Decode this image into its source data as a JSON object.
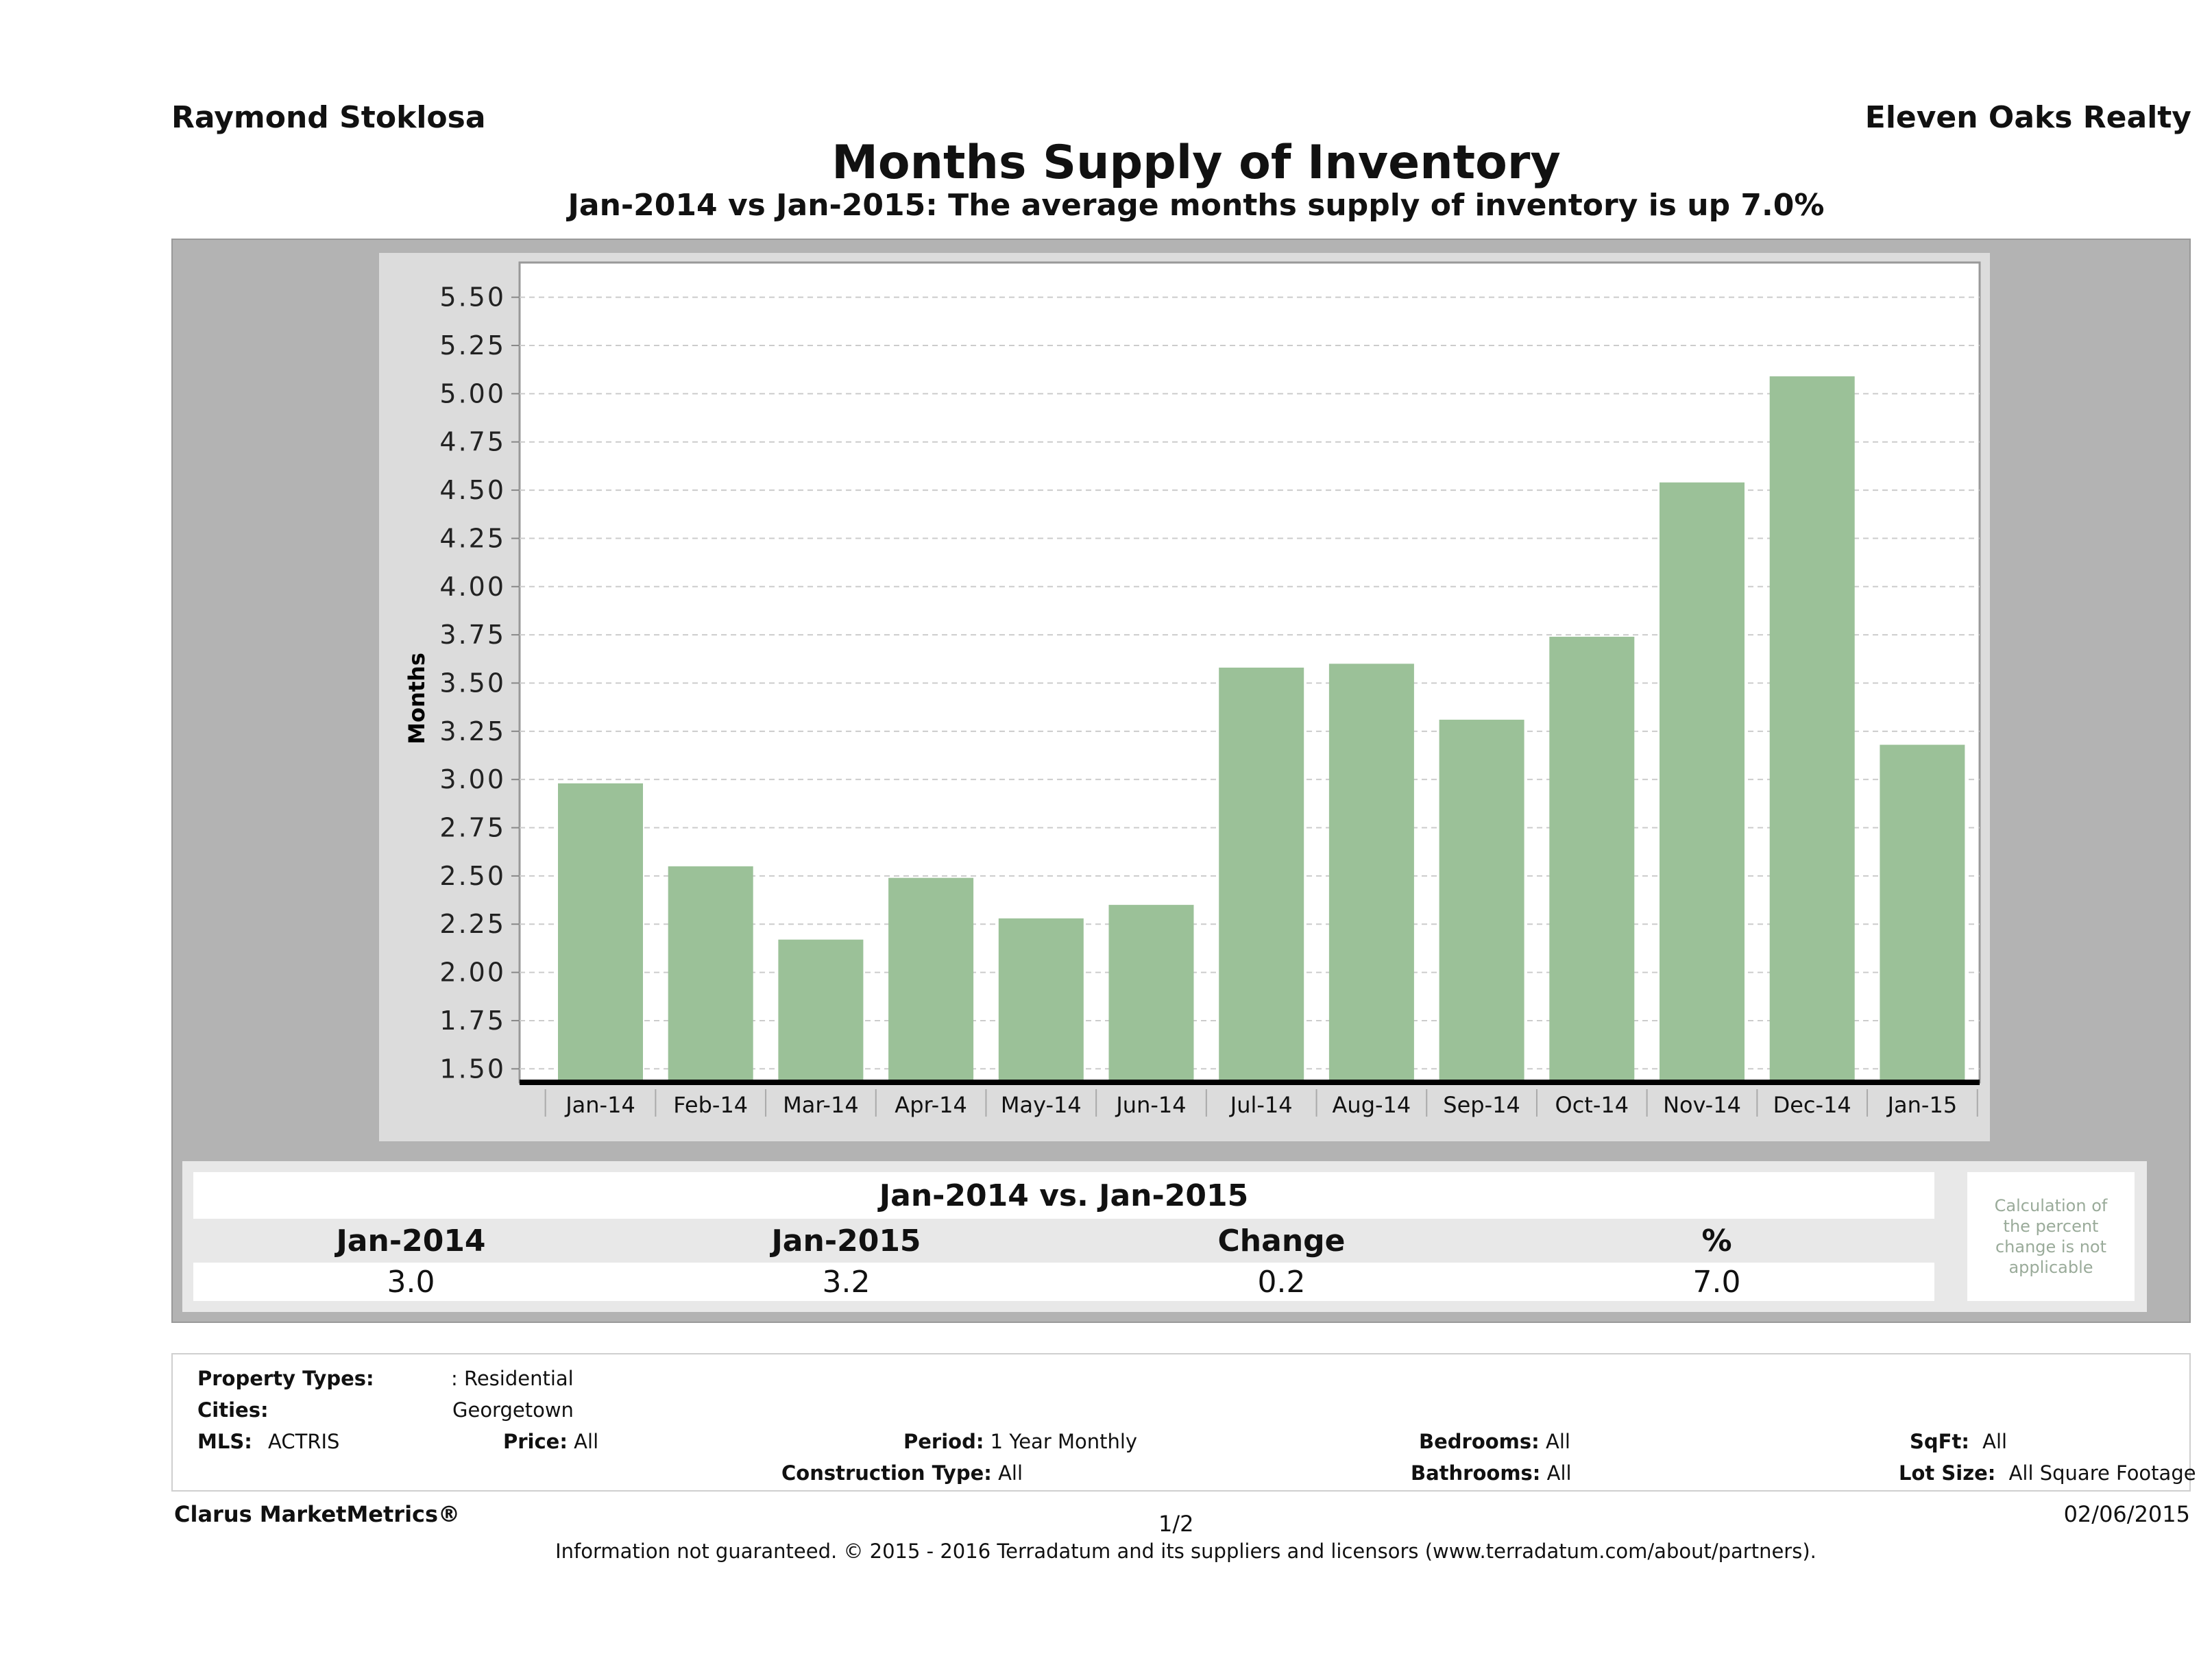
{
  "header": {
    "agent_name": "Raymond Stoklosa",
    "company_name": "Eleven Oaks Realty",
    "title": "Months Supply of Inventory",
    "subtitle": "Jan-2014 vs Jan-2015: The average months supply of inventory is up 7.0%"
  },
  "chart_data": {
    "type": "bar",
    "title": "Months Supply of Inventory",
    "xlabel": "",
    "ylabel": "Months",
    "categories": [
      "Jan-14",
      "Feb-14",
      "Mar-14",
      "Apr-14",
      "May-14",
      "Jun-14",
      "Jul-14",
      "Aug-14",
      "Sep-14",
      "Oct-14",
      "Nov-14",
      "Dec-14",
      "Jan-15"
    ],
    "values": [
      2.98,
      2.55,
      2.17,
      2.49,
      2.28,
      2.35,
      3.58,
      3.6,
      3.31,
      3.74,
      4.54,
      5.09,
      3.18
    ],
    "ylim": [
      1.43,
      5.68
    ],
    "yticks": [
      1.5,
      1.75,
      2.0,
      2.25,
      2.5,
      2.75,
      3.0,
      3.25,
      3.5,
      3.75,
      4.0,
      4.25,
      4.5,
      4.75,
      5.0,
      5.25,
      5.5
    ],
    "ytick_labels": [
      "1.50",
      "1.75",
      "2.00",
      "2.25",
      "2.50",
      "2.75",
      "3.00",
      "3.25",
      "3.50",
      "3.75",
      "4.00",
      "4.25",
      "4.50",
      "4.75",
      "5.00",
      "5.25",
      "5.50"
    ],
    "grid": true,
    "legend": "none",
    "bar_color": "#9bc198"
  },
  "comparison": {
    "title": "Jan-2014 vs. Jan-2015",
    "headers": [
      "Jan-2014",
      "Jan-2015",
      "Change",
      "%"
    ],
    "values": [
      "3.0",
      "3.2",
      "0.2",
      "7.0"
    ],
    "note": "Calculation of the percent change is not applicable"
  },
  "filters": {
    "property_types_label": "Property Types:",
    "property_types_value": ": Residential",
    "cities_label": "Cities:",
    "cities_value": "Georgetown",
    "mls_label": "MLS:",
    "mls_value": "ACTRIS",
    "price_label": "Price:",
    "price_value": "All",
    "period_label": "Period:",
    "period_value": "1 Year Monthly",
    "construction_label": "Construction Type:",
    "construction_value": "All",
    "bedrooms_label": "Bedrooms:",
    "bedrooms_value": "All",
    "bathrooms_label": "Bathrooms:",
    "bathrooms_value": "All",
    "sqft_label": "SqFt:",
    "sqft_value": "All",
    "lot_label": "Lot Size:",
    "lot_value": "All Square Footage"
  },
  "footer": {
    "brand": "Clarus MarketMetrics®",
    "page": "1/2",
    "date": "02/06/2015",
    "disclaimer": "Information not guaranteed. © 2015 - 2016 Terradatum and its suppliers and licensors (www.terradatum.com/about/partners)."
  }
}
